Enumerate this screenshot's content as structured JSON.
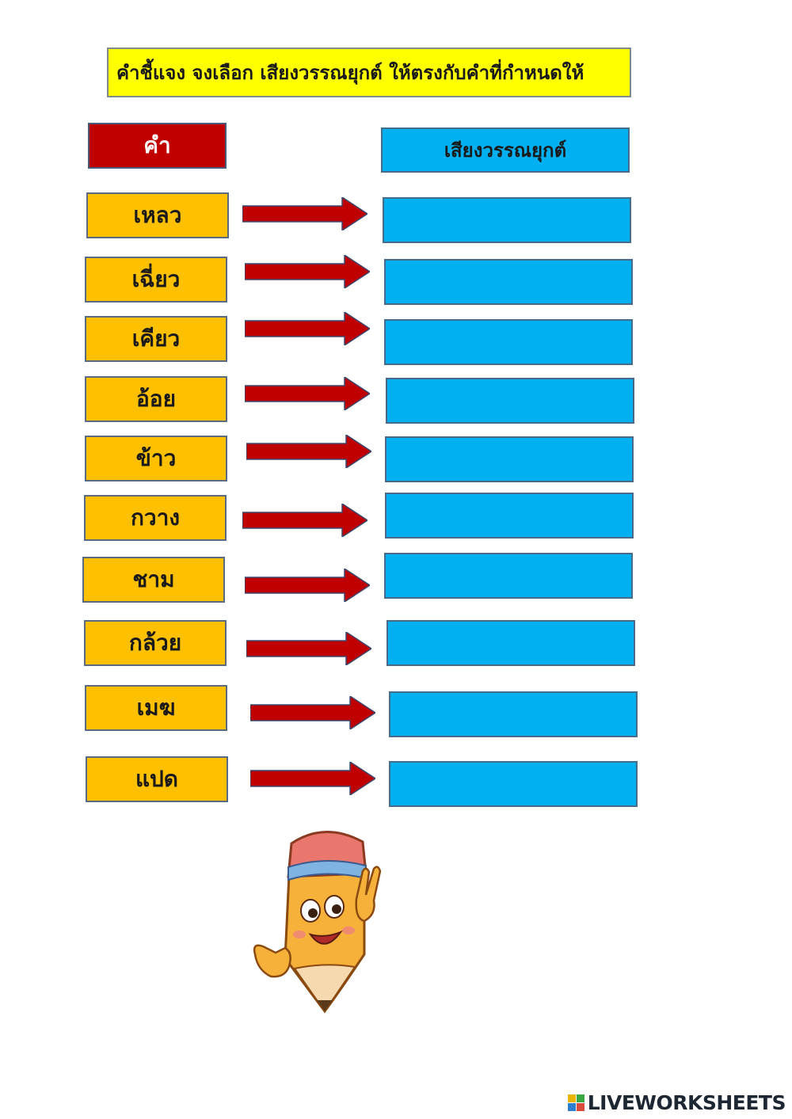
{
  "instructions": "คำชี้แจง  จงเลือก เสียงวรรณยุกต์ ให้ตรงกับคำที่กำหนดให้",
  "headers": {
    "word": "คำ",
    "tone": "เสียงวรรณยุกต์"
  },
  "words": [
    "เหลว",
    "เฉี่ยว",
    "เคียว",
    "อ้อย",
    "ข้าว",
    "กวาง",
    "ชาม",
    "กล้วย",
    "เมฆ",
    "แปด"
  ],
  "answers": [
    "",
    "",
    "",
    "",
    "",
    "",
    "",
    "",
    "",
    ""
  ],
  "branding": {
    "name": "LIVEWORKSHEETS"
  },
  "colors": {
    "instructions_bg": "#ffff00",
    "word_header_bg": "#c00000",
    "tone_header_bg": "#00b0f0",
    "word_box_bg": "#ffc000",
    "answer_box_bg": "#00b0f0",
    "arrow": "#c00000"
  }
}
